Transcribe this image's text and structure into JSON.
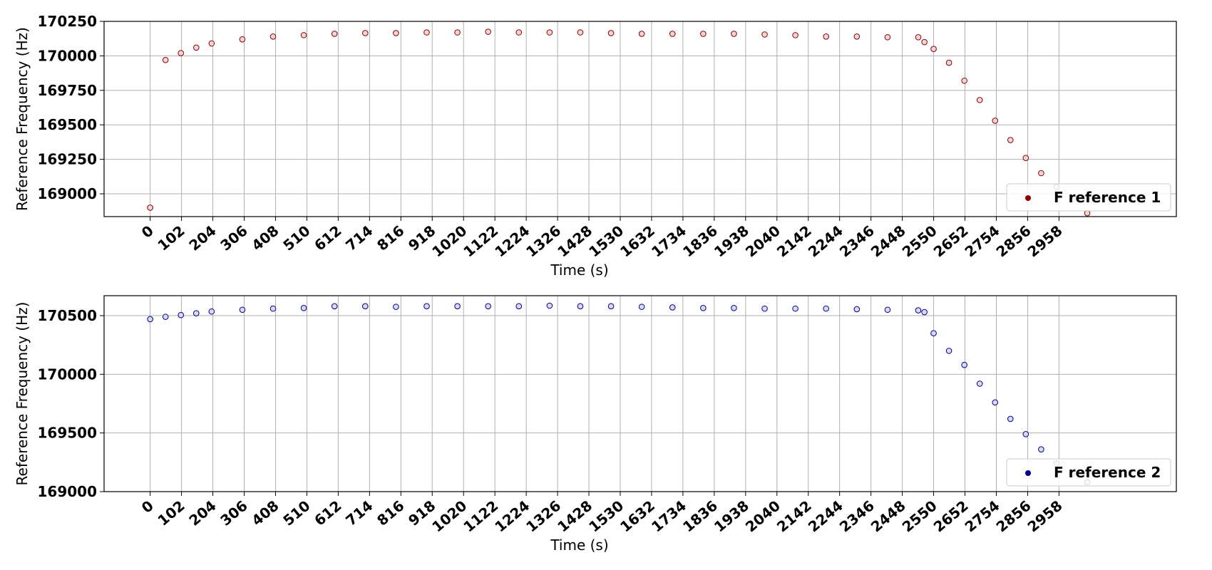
{
  "chart_data": [
    {
      "type": "scatter",
      "xlabel": "Time (s)",
      "ylabel": "Reference Frequency (Hz)",
      "xlim": [
        -150,
        3340
      ],
      "ylim": [
        168835,
        170250
      ],
      "x_ticks": [
        "0",
        "102",
        "204",
        "306",
        "408",
        "510",
        "612",
        "714",
        "816",
        "918",
        "1020",
        "1122",
        "1224",
        "1326",
        "1428",
        "1530",
        "1632",
        "1734",
        "1836",
        "1938",
        "2040",
        "2142",
        "2244",
        "2346",
        "2448",
        "2550",
        "2652",
        "2754",
        "2856",
        "2958"
      ],
      "y_ticks": [
        "169000",
        "169250",
        "169500",
        "169750",
        "170000",
        "170250"
      ],
      "grid": true,
      "legend_position": "lower-right",
      "marker_color": "#8b0000",
      "marker_fill": "#f2d6d6",
      "series": [
        {
          "name": "F reference 1",
          "x": [
            0,
            50,
            100,
            150,
            200,
            300,
            400,
            500,
            600,
            700,
            800,
            900,
            1000,
            1100,
            1200,
            1300,
            1400,
            1500,
            1600,
            1700,
            1800,
            1900,
            2000,
            2100,
            2200,
            2300,
            2400,
            2500,
            2520,
            2550,
            2600,
            2650,
            2700,
            2750,
            2800,
            2850,
            2900,
            2950,
            3000,
            3050
          ],
          "y": [
            168900,
            169970,
            170020,
            170060,
            170090,
            170120,
            170140,
            170150,
            170160,
            170165,
            170165,
            170170,
            170170,
            170175,
            170170,
            170170,
            170170,
            170165,
            170160,
            170160,
            170160,
            170160,
            170155,
            170150,
            170140,
            170140,
            170135,
            170135,
            170100,
            170050,
            169950,
            169820,
            169680,
            169530,
            169390,
            169260,
            169150,
            169050,
            168960,
            168860
          ]
        }
      ]
    },
    {
      "type": "scatter",
      "xlabel": "Time (s)",
      "ylabel": "Reference Frequency (Hz)",
      "xlim": [
        -150,
        3340
      ],
      "ylim": [
        169000,
        170670
      ],
      "x_ticks": [
        "0",
        "102",
        "204",
        "306",
        "408",
        "510",
        "612",
        "714",
        "816",
        "918",
        "1020",
        "1122",
        "1224",
        "1326",
        "1428",
        "1530",
        "1632",
        "1734",
        "1836",
        "1938",
        "2040",
        "2142",
        "2244",
        "2346",
        "2448",
        "2550",
        "2652",
        "2754",
        "2856",
        "2958"
      ],
      "y_ticks": [
        "169000",
        "169500",
        "170000",
        "170500"
      ],
      "grid": true,
      "legend_position": "lower-right",
      "marker_color": "#00008b",
      "marker_fill": "#d8daf2",
      "series": [
        {
          "name": "F reference 2",
          "x": [
            0,
            50,
            100,
            150,
            200,
            300,
            400,
            500,
            600,
            700,
            800,
            900,
            1000,
            1100,
            1200,
            1300,
            1400,
            1500,
            1600,
            1700,
            1800,
            1900,
            2000,
            2100,
            2200,
            2300,
            2400,
            2500,
            2520,
            2550,
            2600,
            2650,
            2700,
            2750,
            2800,
            2850,
            2900,
            2950,
            3000,
            3050
          ],
          "y": [
            170470,
            170490,
            170505,
            170520,
            170535,
            170550,
            170560,
            170565,
            170580,
            170580,
            170575,
            170580,
            170580,
            170580,
            170580,
            170585,
            170580,
            170580,
            170575,
            170570,
            170565,
            170565,
            170560,
            170560,
            170560,
            170555,
            170550,
            170545,
            170530,
            170350,
            170200,
            170080,
            169920,
            169760,
            169620,
            169490,
            169360,
            169240,
            169150,
            169080
          ]
        }
      ]
    }
  ]
}
